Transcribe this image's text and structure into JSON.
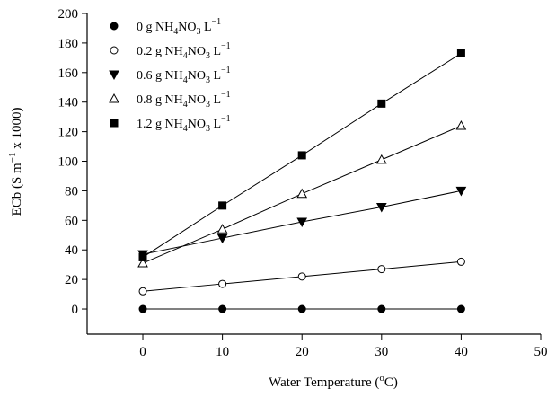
{
  "chart_data": {
    "type": "line",
    "xlabel": {
      "prefix": "Water Temperature (",
      "sup": "o",
      "suffix": "C)"
    },
    "ylabel": {
      "prefix": "ECb (S m",
      "sup": "−1",
      "suffix": " x 1000)"
    },
    "xlim": [
      -7,
      50
    ],
    "ylim": [
      -17,
      200
    ],
    "x_ticks": [
      0,
      10,
      20,
      30,
      40,
      50
    ],
    "y_ticks": [
      0,
      20,
      40,
      60,
      80,
      100,
      120,
      140,
      160,
      180,
      200
    ],
    "grid": false,
    "legend_position": "top-left",
    "x": [
      0,
      10,
      20,
      30,
      40
    ],
    "series": [
      {
        "marker": "filled-circle",
        "values": [
          0,
          0,
          0,
          0,
          0
        ],
        "legend": {
          "pre": "0 g NH",
          "s1": "4",
          "mid": "NO",
          "s2": "3",
          "unit": " L",
          "sup": "−1"
        }
      },
      {
        "marker": "open-circle",
        "values": [
          12,
          17,
          22,
          27,
          32
        ],
        "legend": {
          "pre": "0.2 g NH",
          "s1": "4",
          "mid": "NO",
          "s2": "3",
          "unit": " L",
          "sup": "−1"
        }
      },
      {
        "marker": "filled-triangle-down",
        "values": [
          37,
          48,
          59,
          69,
          80
        ],
        "legend": {
          "pre": "0.6 g NH",
          "s1": "4",
          "mid": "NO",
          "s2": "3",
          "unit": " L",
          "sup": "−1"
        }
      },
      {
        "marker": "open-triangle-up",
        "values": [
          31,
          54,
          78,
          101,
          124
        ],
        "legend": {
          "pre": "0.8 g NH",
          "s1": "4",
          "mid": "NO",
          "s2": "3",
          "unit": " L",
          "sup": "−1"
        }
      },
      {
        "marker": "filled-square",
        "values": [
          35,
          70,
          104,
          139,
          173
        ],
        "legend": {
          "pre": "1.2 g NH",
          "s1": "4",
          "mid": "NO",
          "s2": "3",
          "unit": " L",
          "sup": "−1"
        }
      }
    ]
  }
}
